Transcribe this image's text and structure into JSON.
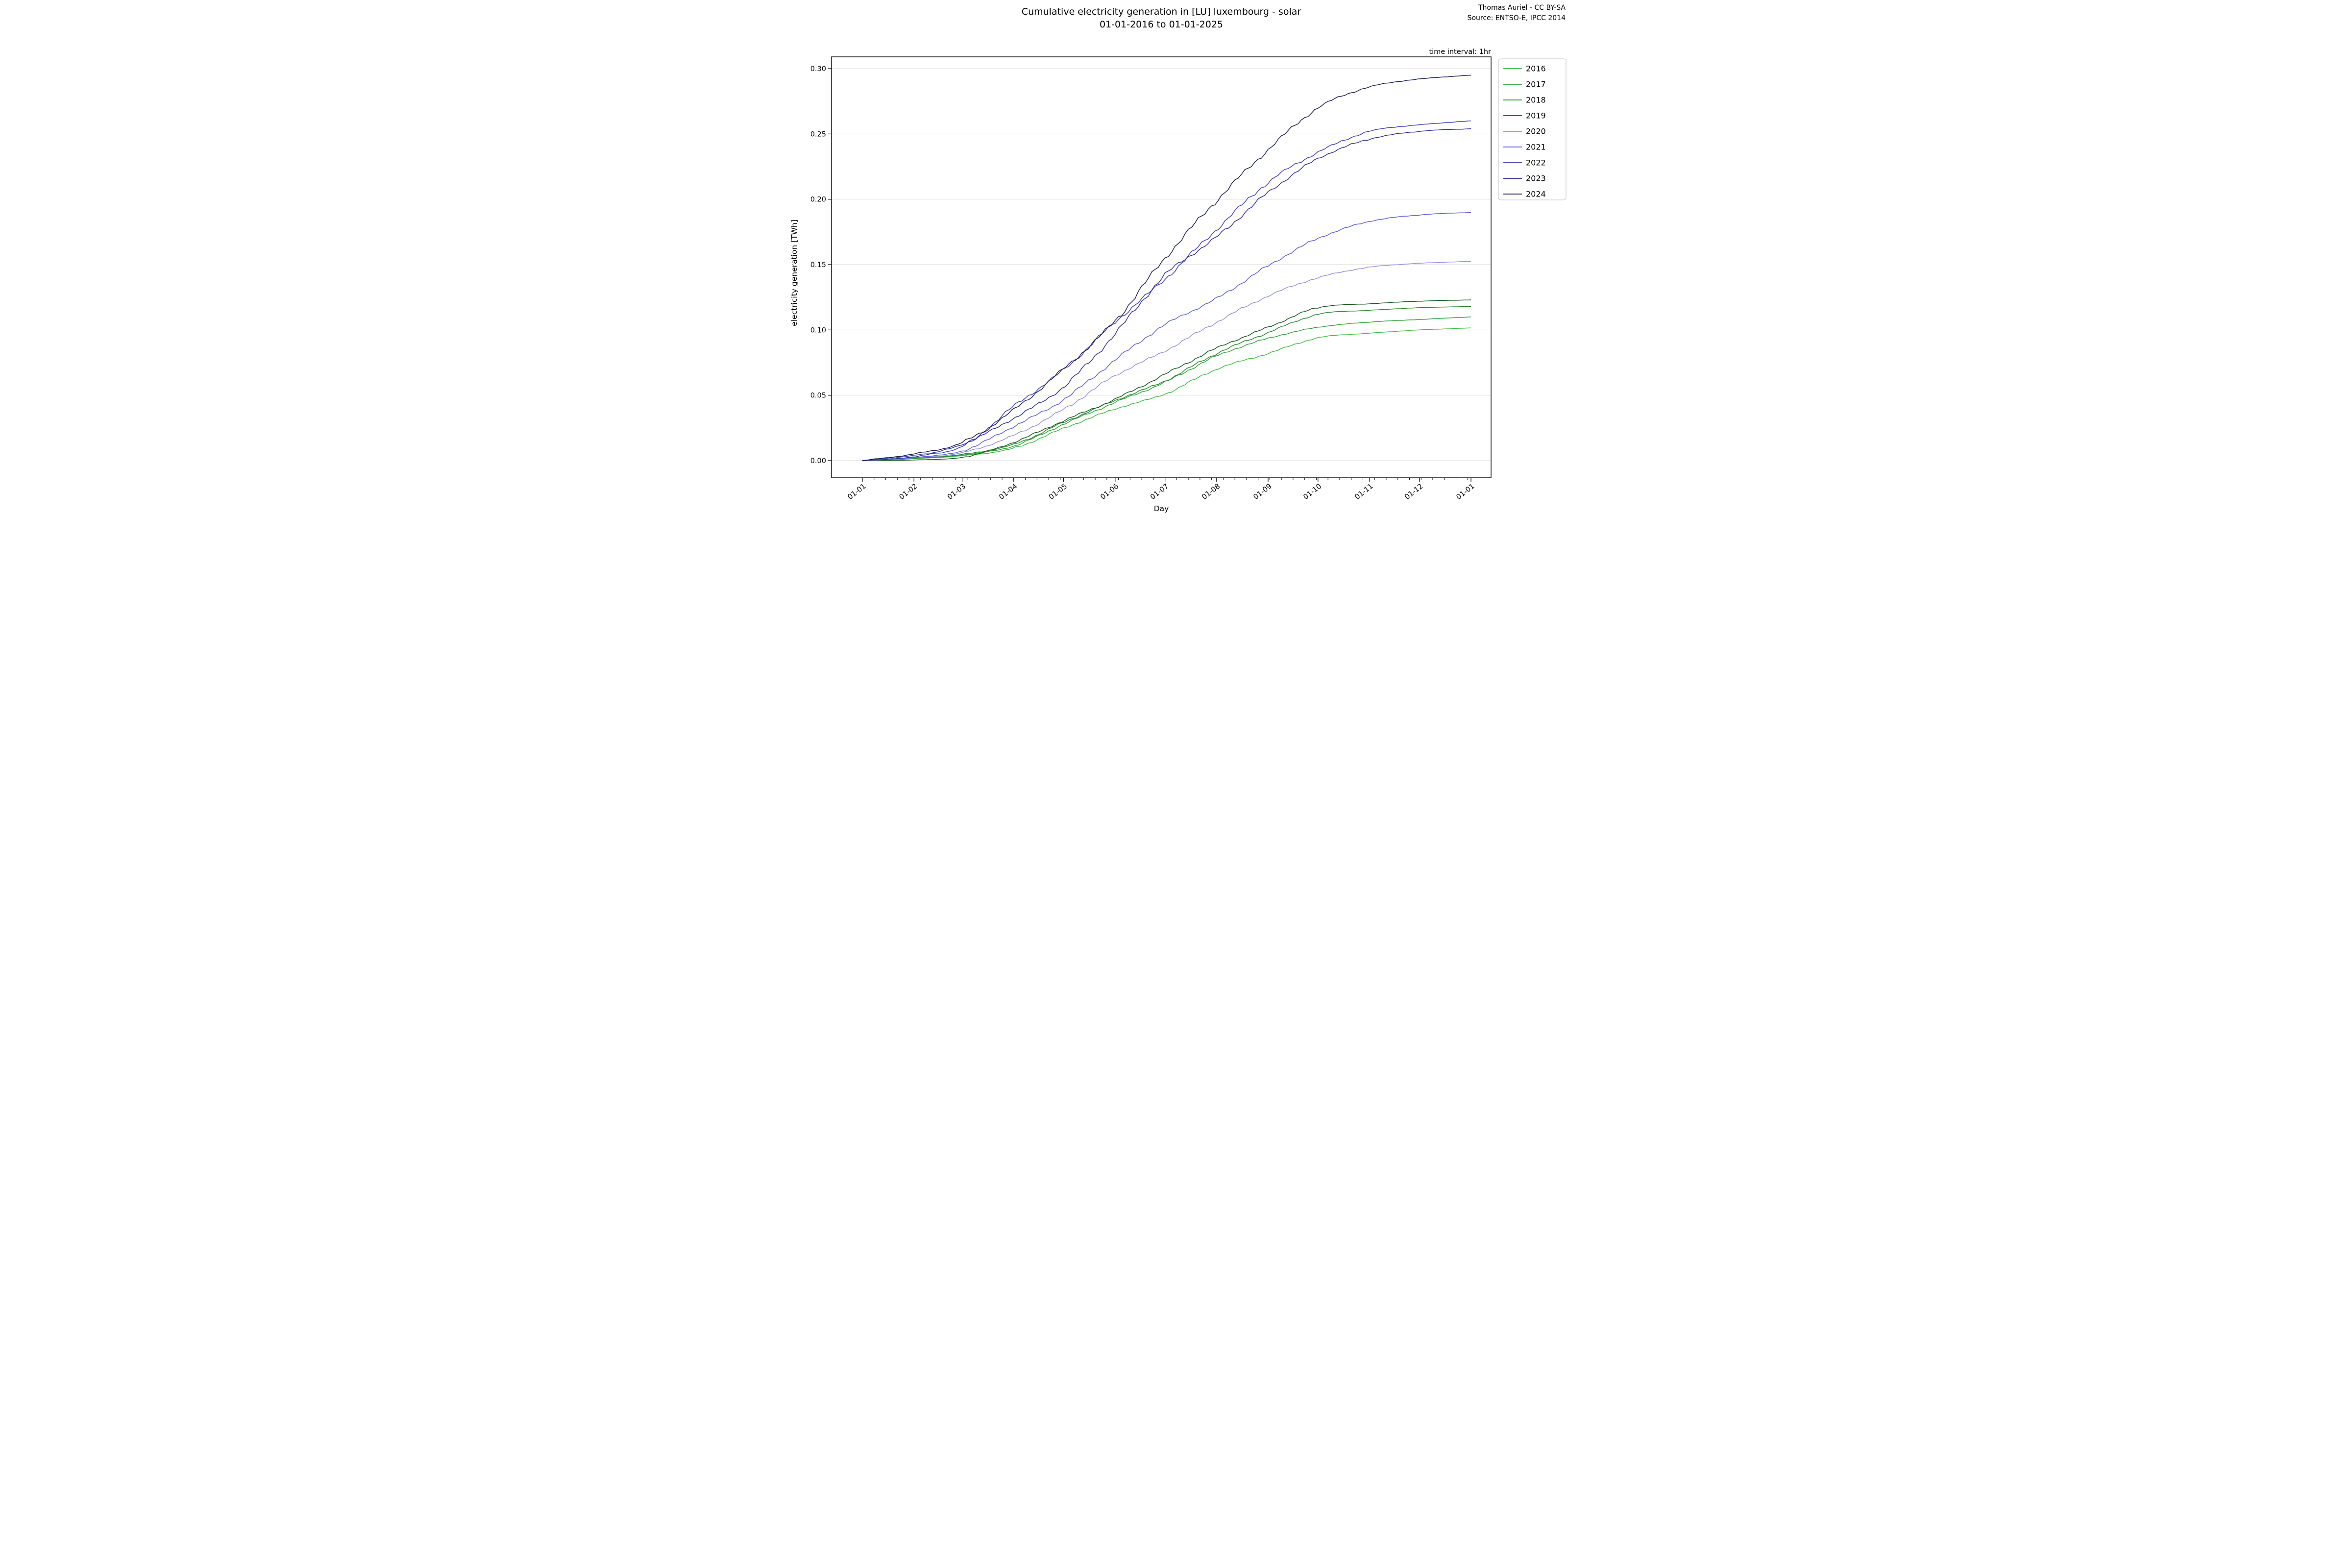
{
  "header": {
    "title_line1": "Cumulative electricity generation in [LU] luxembourg - solar",
    "title_line2": "01-01-2016 to 01-01-2025",
    "credit_line1": "Thomas Auriel - CC BY-SA",
    "credit_line2": "Source: ENTSO-E, IPCC 2014",
    "note": "time interval: 1hr"
  },
  "axes": {
    "x_label": "Day",
    "y_label": "electricity generation [TWh]",
    "x_tick_labels": [
      "01-01",
      "01-02",
      "01-03",
      "01-04",
      "01-05",
      "01-06",
      "01-07",
      "01-08",
      "01-09",
      "01-10",
      "01-11",
      "01-12",
      "01-01"
    ],
    "y_tick_labels": [
      "0.00",
      "0.05",
      "0.10",
      "0.15",
      "0.20",
      "0.25",
      "0.30"
    ],
    "y_min": 0.0,
    "y_max": 0.3,
    "y_step": 0.05
  },
  "legend": {
    "entries": [
      "2016",
      "2017",
      "2018",
      "2019",
      "2020",
      "2021",
      "2022",
      "2023",
      "2024"
    ]
  },
  "chart_data": {
    "type": "line",
    "title": "Cumulative electricity generation in [LU] luxembourg - solar 01-01-2016 to 01-01-2025",
    "xlabel": "Day",
    "ylabel": "electricity generation [TWh]",
    "x": [
      "01-01",
      "01-02",
      "01-03",
      "01-04",
      "01-05",
      "01-06",
      "01-07",
      "01-08",
      "01-09",
      "01-10",
      "01-11",
      "01-12",
      "01-01"
    ],
    "ylim": [
      0.0,
      0.3
    ],
    "grid": "horizontal",
    "legend_position": "upper right",
    "series": [
      {
        "name": "2016",
        "color": "#3dbd43",
        "values": [
          0,
          0.0015,
          0.0037,
          0.0095,
          0.0247,
          0.0395,
          0.051,
          0.07,
          0.082,
          0.094,
          0.0975,
          0.1,
          0.1015
        ]
      },
      {
        "name": "2017",
        "color": "#2fa137",
        "values": [
          0,
          0.0015,
          0.0043,
          0.0111,
          0.0279,
          0.0445,
          0.06,
          0.08,
          0.0935,
          0.102,
          0.106,
          0.108,
          0.11
        ]
      },
      {
        "name": "2018",
        "color": "#238b2b",
        "values": [
          0,
          0.0018,
          0.0047,
          0.0124,
          0.0292,
          0.046,
          0.061,
          0.082,
          0.098,
          0.112,
          0.115,
          0.117,
          0.118
        ]
      },
      {
        "name": "2019",
        "color": "#15561d",
        "values": [
          0,
          0.0005,
          0.0025,
          0.014,
          0.0305,
          0.047,
          0.066,
          0.086,
          0.102,
          0.117,
          0.12,
          0.122,
          0.123
        ]
      },
      {
        "name": "2020",
        "color": "#8f92e3",
        "values": [
          0,
          0.0021,
          0.006,
          0.0193,
          0.0392,
          0.065,
          0.084,
          0.106,
          0.126,
          0.14,
          0.148,
          0.151,
          0.1525
        ]
      },
      {
        "name": "2021",
        "color": "#5a5ed8",
        "values": [
          0,
          0.0025,
          0.0074,
          0.0262,
          0.0466,
          0.077,
          0.104,
          0.124,
          0.149,
          0.17,
          0.183,
          0.188,
          0.19
        ]
      },
      {
        "name": "2022",
        "color": "#3b3eba",
        "values": [
          0,
          0.004,
          0.0107,
          0.0415,
          0.0695,
          0.106,
          0.139,
          0.177,
          0.213,
          0.236,
          0.252,
          0.257,
          0.26
        ]
      },
      {
        "name": "2023",
        "color": "#2b2d94",
        "values": [
          0,
          0.003,
          0.0124,
          0.0325,
          0.0565,
          0.097,
          0.142,
          0.171,
          0.205,
          0.231,
          0.246,
          0.252,
          0.254
        ]
      },
      {
        "name": "2024",
        "color": "#191b52",
        "values": [
          0,
          0.0051,
          0.0138,
          0.0388,
          0.0702,
          0.107,
          0.155,
          0.199,
          0.238,
          0.27,
          0.286,
          0.292,
          0.295
        ]
      }
    ]
  }
}
